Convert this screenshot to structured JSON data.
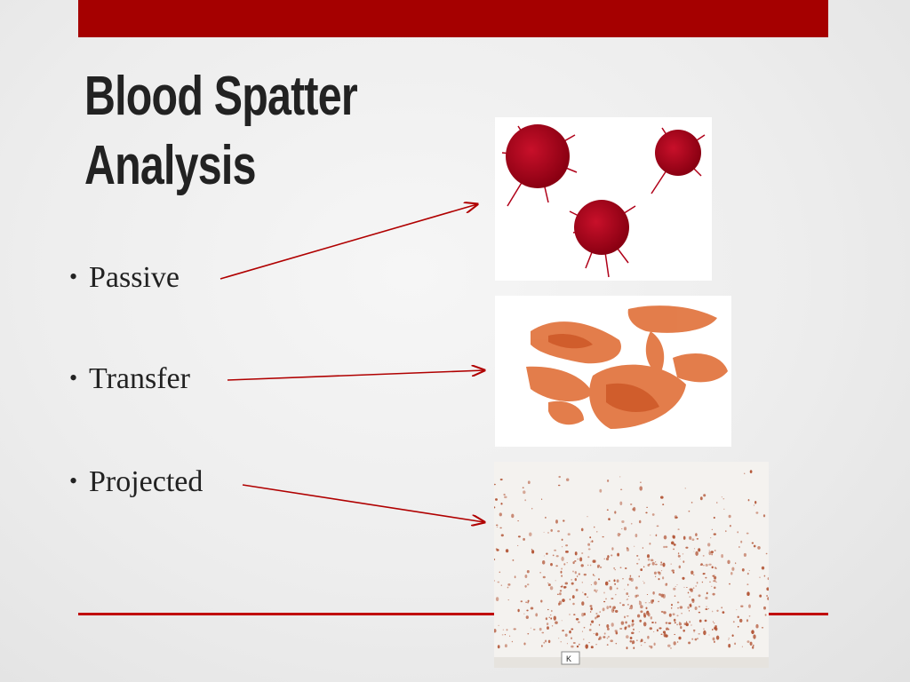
{
  "slide": {
    "title_line1": "Blood Spatter",
    "title_line2": "Analysis",
    "bullets": [
      {
        "label": "Passive"
      },
      {
        "label": "Transfer"
      },
      {
        "label": "Projected"
      }
    ],
    "bullet_glyph": "•"
  },
  "colors": {
    "accent_bar": "#a50000",
    "accent_line": "#c00000",
    "arrow": "#b00000",
    "blood_drop": "#b00018",
    "transfer_stain": "#e07038",
    "spatter": "#b05030"
  },
  "image_stamp_label": "K"
}
